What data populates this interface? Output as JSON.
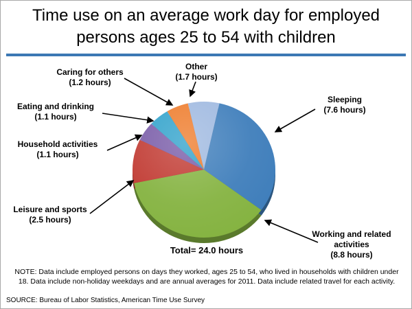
{
  "page": {
    "title_lines": [
      "Time use on an average work day for employed",
      "persons ages 25 to 54 with children"
    ],
    "note": "NOTE: Data include employed persons on days they worked, ages 25 to 54, who lived in households with children under 18. Data include non-holiday weekdays and are annual averages for 2011. Data include related travel for each activity.",
    "source": "SOURCE: Bureau of Labor Statistics, American Time Use Survey"
  },
  "colors": {
    "divider": "#3C78B4",
    "background": "#FFFFFF",
    "text": "#000000"
  },
  "chart_data": {
    "type": "pie",
    "title": "Time use on an average work day for employed persons ages 25 to 54 with children",
    "unit": "hours",
    "total_hours": 24.0,
    "total_label": "Total= 24.0 hours",
    "direction": "clockwise",
    "start_angle_deg": -13,
    "slices": [
      {
        "label": "Other",
        "value": 1.7,
        "color": "#9FB9E0"
      },
      {
        "label": "Sleeping",
        "value": 7.6,
        "color": "#3F7EBB"
      },
      {
        "label": "Working and related activities",
        "value": 8.8,
        "color": "#85B341"
      },
      {
        "label": "Leisure and sports",
        "value": 2.5,
        "color": "#C13B33"
      },
      {
        "label": "Household activities",
        "value": 1.1,
        "color": "#795CA8"
      },
      {
        "label": "Eating and drinking",
        "value": 1.1,
        "color": "#31A2CB"
      },
      {
        "label": "Caring for others",
        "value": 1.2,
        "color": "#EE7C2C"
      }
    ]
  },
  "callouts": {
    "caring": {
      "line1": "Caring for others",
      "line2": "(1.2 hours)"
    },
    "other": {
      "line1": "Other",
      "line2": "(1.7 hours)"
    },
    "sleeping": {
      "line1": "Sleeping",
      "line2": "(7.6 hours)"
    },
    "eating": {
      "line1": "Eating and drinking",
      "line2": "(1.1 hours)"
    },
    "household": {
      "line1": "Household activities",
      "line2": "(1.1 hours)"
    },
    "leisure": {
      "line1": "Leisure and sports",
      "line2": "(2.5 hours)"
    },
    "working": {
      "line1": "Working and related activities",
      "line2": "(8.8 hours)"
    }
  }
}
